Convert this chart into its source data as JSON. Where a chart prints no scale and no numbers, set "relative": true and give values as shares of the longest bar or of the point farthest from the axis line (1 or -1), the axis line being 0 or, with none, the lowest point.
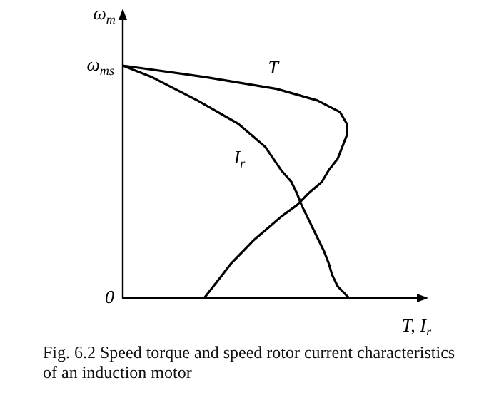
{
  "chart_data": {
    "type": "line",
    "orientation": "horizontal",
    "title": "Fig. 6.2 Speed torque and speed rotor current characteristics of an induction motor",
    "xlabel": "T, I$_{r}$",
    "ylabel": "ω$_{m}$",
    "relative": true,
    "categories": [
      "ω$_{ms}$",
      null,
      null,
      null,
      null,
      null,
      null,
      null,
      null,
      null,
      null,
      null,
      null,
      null,
      null,
      null,
      null,
      null,
      null,
      null,
      "0"
    ],
    "grid": false,
    "legend": false,
    "marker": "none",
    "line_style": "solid",
    "series": [
      {
        "name": "T",
        "color": "#000000",
        "values": [
          0,
          0.37,
          0.68,
          0.86,
          0.96,
          0.99,
          0.99,
          0.97,
          0.95,
          0.91,
          0.88,
          0.82,
          0.77,
          0.7,
          0.64,
          0.58,
          0.53,
          0.48,
          0.44,
          0.4,
          0.36
        ]
      },
      {
        "name": "I$_{r}$",
        "color": "#000000",
        "values": [
          0,
          0.13,
          0.23,
          0.33,
          0.42,
          0.51,
          0.57,
          0.63,
          0.665,
          0.7,
          0.745,
          0.77,
          0.79,
          0.815,
          0.84,
          0.865,
          0.89,
          0.91,
          0.925,
          0.95,
          1
        ]
      }
    ]
  }
}
